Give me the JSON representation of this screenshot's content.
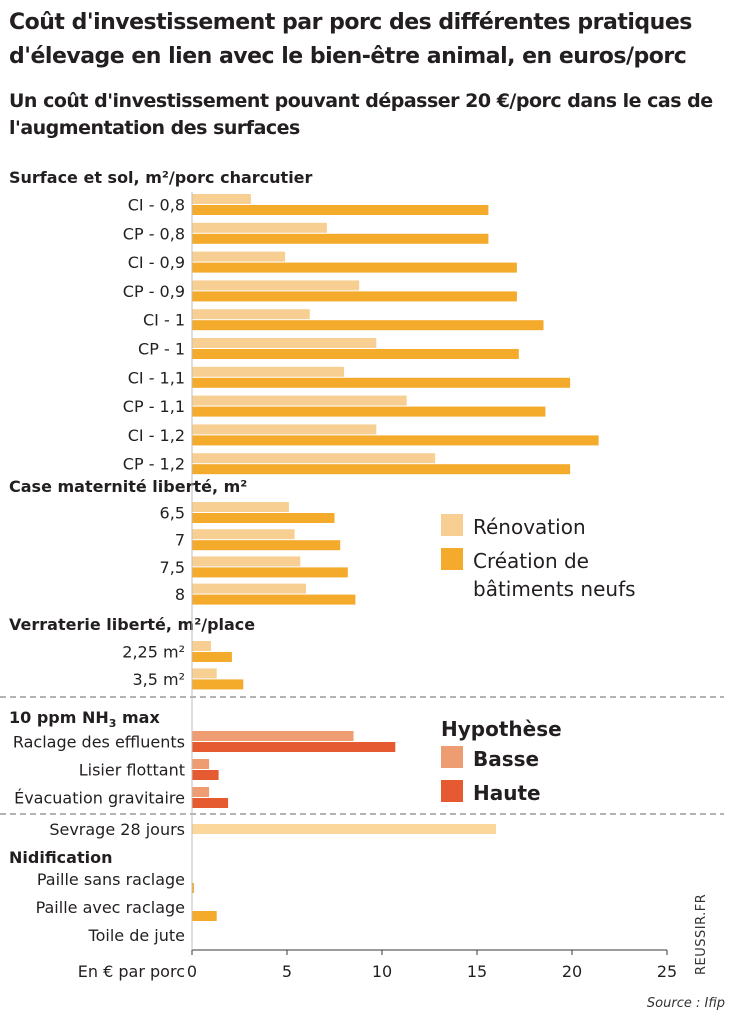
{
  "title": "Coût d'investissement par porc des différentes pratiques d'élevage en lien avec le bien-être animal, en euros/porc",
  "subtitle": "Un coût d'investissement pouvant dépasser 20 €/porc dans le cas de l'augmentation des surfaces",
  "source": "Source : Ifip",
  "credit": "REUSSIR.FR",
  "colors": {
    "renovation": "#f8cf92",
    "creation": "#f4aa2b",
    "basse": "#ee9d72",
    "haute": "#e55a30",
    "sevrage": "#fbd79c",
    "divider": "#9a9a9a",
    "axis": "#3a3a3a"
  },
  "chart_data": {
    "type": "bar",
    "orientation": "horizontal",
    "xlabel": "En € par porc",
    "xlim": [
      0,
      25
    ],
    "xticks": [
      0,
      5,
      10,
      15,
      20,
      25
    ],
    "xtick_labels": [
      "0",
      "5",
      "10",
      "15",
      "20",
      "25"
    ],
    "legends": [
      {
        "title": "",
        "entries": [
          {
            "key": "renovation",
            "label_lines": [
              "Rénovation"
            ]
          },
          {
            "key": "creation",
            "label_lines": [
              "Création de",
              "bâtiments neufs"
            ]
          }
        ]
      },
      {
        "title": "Hypothèse",
        "entries": [
          {
            "key": "basse",
            "label_lines": [
              "Basse"
            ]
          },
          {
            "key": "haute",
            "label_lines": [
              "Haute"
            ]
          }
        ]
      }
    ],
    "sections": [
      {
        "title": "Surface et sol, m²/porc charcutier",
        "series": [
          "renovation",
          "creation"
        ],
        "categories": [
          "CI - 0,8",
          "CP - 0,8",
          "CI - 0,9",
          "CP - 0,9",
          "CI - 1",
          "CP - 1",
          "CI - 1,1",
          "CP - 1,1",
          "CI - 1,2",
          "CP - 1,2"
        ],
        "values": {
          "renovation": [
            3.1,
            7.1,
            4.9,
            8.8,
            6.2,
            9.7,
            8.0,
            11.3,
            9.7,
            12.8
          ],
          "creation": [
            15.6,
            15.6,
            17.1,
            17.1,
            18.5,
            17.2,
            19.9,
            18.6,
            21.4,
            19.9
          ]
        }
      },
      {
        "title": "Case maternité liberté, m²",
        "series": [
          "renovation",
          "creation"
        ],
        "categories": [
          "6,5",
          "7",
          "7,5",
          "8"
        ],
        "values": {
          "renovation": [
            5.1,
            5.4,
            5.7,
            6.0
          ],
          "creation": [
            7.5,
            7.8,
            8.2,
            8.6
          ]
        }
      },
      {
        "title": "Verraterie liberté, m²/place",
        "series": [
          "renovation",
          "creation"
        ],
        "categories": [
          "2,25 m²",
          "3,5 m²"
        ],
        "values": {
          "renovation": [
            1.0,
            1.3
          ],
          "creation": [
            2.1,
            2.7
          ]
        }
      },
      {
        "title": "10 ppm NH3 max",
        "series": [
          "basse",
          "haute"
        ],
        "categories": [
          "Raclage des effluents",
          "Lisier flottant",
          "Évacuation gravitaire"
        ],
        "values": {
          "basse": [
            8.5,
            0.9,
            0.9
          ],
          "haute": [
            10.7,
            1.4,
            1.9
          ]
        }
      },
      {
        "title": "",
        "series": [
          "sevrage"
        ],
        "categories": [
          "Sevrage 28 jours"
        ],
        "values": {
          "sevrage": [
            16.0
          ]
        }
      },
      {
        "title": "Nidification",
        "series": [
          "creation"
        ],
        "categories": [
          "Paille sans  raclage",
          "Paille avec raclage",
          "Toile de jute"
        ],
        "values": {
          "creation": [
            0.1,
            1.3,
            0.0
          ]
        }
      }
    ]
  }
}
